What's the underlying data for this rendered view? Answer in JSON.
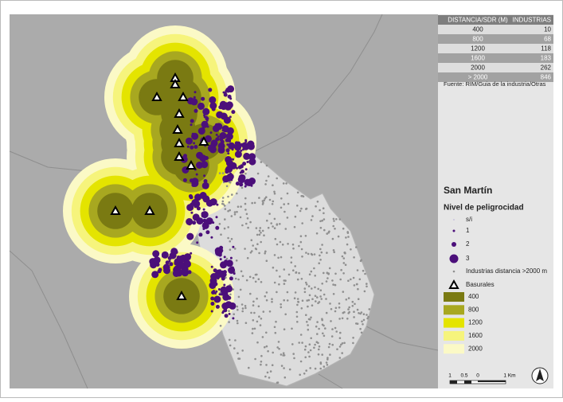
{
  "table": {
    "header": [
      "DISTANCIA/SDR (M)",
      "INDUSTRIAS"
    ],
    "rows": [
      [
        400,
        10
      ],
      [
        800,
        68
      ],
      [
        1200,
        118
      ],
      [
        1600,
        183
      ],
      [
        2000,
        262
      ],
      [
        "> 2000",
        846
      ]
    ]
  },
  "source": "Fuente: RIM/Guia de la industria/Otras",
  "legend": {
    "title": "San Martín",
    "subtitle": "Nivel de peligrocidad",
    "levels": [
      {
        "label": "s/i",
        "color": "#c9c3df"
      },
      {
        "label": "1",
        "color": "#4b0f7a"
      },
      {
        "label": "2",
        "color": "#4b0f7a"
      },
      {
        "label": "3",
        "color": "#4b0f7a"
      }
    ],
    "industries": "Industrias distancia >2000 m",
    "dumps": "Basurales",
    "zones": [
      {
        "label": 400,
        "color": "#7a7a12"
      },
      {
        "label": 800,
        "color": "#a8a820"
      },
      {
        "label": 1200,
        "color": "#e4e400"
      },
      {
        "label": 1600,
        "color": "#f6f47c"
      },
      {
        "label": 2000,
        "color": "#fbf9c6"
      }
    ]
  },
  "scale": {
    "labels": [
      "1",
      "0.5",
      "0",
      "1 Km"
    ]
  }
}
